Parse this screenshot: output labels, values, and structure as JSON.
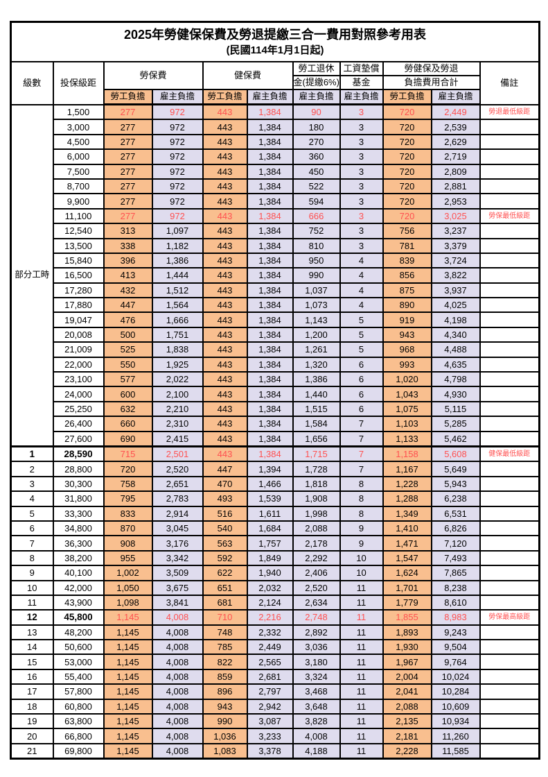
{
  "title": "2025年勞健保保費及勞退提繳三合一費用對照參考用表",
  "subtitle": "(民國114年1月1日起)",
  "colors": {
    "employee_col_bg": "#F9BF8F",
    "employer_col_bg": "#DFDCEE",
    "highlight_text": "#FF5050",
    "border": "#000000"
  },
  "header": {
    "col_level": "級數",
    "col_bracket": "投保級距",
    "group_labor": "勞保費",
    "group_health": "健保費",
    "group_pension_l1": "勞工退休",
    "group_pension_l2": "金(提繳6%)",
    "group_wage_l1": "工資墊償",
    "group_wage_l2": "基金",
    "group_total_l1": "勞健保及勞退",
    "group_total_l2": "負擔費用合計",
    "sub_employee": "勞工負擔",
    "sub_employer": "雇主負擔",
    "col_remark": "備註"
  },
  "part_time_label": "部分工時",
  "part_time_rowspan": 23,
  "rows": [
    {
      "level": "",
      "bracket": "1,500",
      "values": [
        "277",
        "972",
        "443",
        "1,384",
        "90",
        "3",
        "720",
        "2,449"
      ],
      "remark": "勞退最低級距",
      "highlight": true
    },
    {
      "level": "",
      "bracket": "3,000",
      "values": [
        "277",
        "972",
        "443",
        "1,384",
        "180",
        "3",
        "720",
        "2,539"
      ],
      "remark": ""
    },
    {
      "level": "",
      "bracket": "4,500",
      "values": [
        "277",
        "972",
        "443",
        "1,384",
        "270",
        "3",
        "720",
        "2,629"
      ],
      "remark": ""
    },
    {
      "level": "",
      "bracket": "6,000",
      "values": [
        "277",
        "972",
        "443",
        "1,384",
        "360",
        "3",
        "720",
        "2,719"
      ],
      "remark": ""
    },
    {
      "level": "",
      "bracket": "7,500",
      "values": [
        "277",
        "972",
        "443",
        "1,384",
        "450",
        "3",
        "720",
        "2,809"
      ],
      "remark": ""
    },
    {
      "level": "",
      "bracket": "8,700",
      "values": [
        "277",
        "972",
        "443",
        "1,384",
        "522",
        "3",
        "720",
        "2,881"
      ],
      "remark": ""
    },
    {
      "level": "",
      "bracket": "9,900",
      "values": [
        "277",
        "972",
        "443",
        "1,384",
        "594",
        "3",
        "720",
        "2,953"
      ],
      "remark": ""
    },
    {
      "level": "",
      "bracket": "11,100",
      "values": [
        "277",
        "972",
        "443",
        "1,384",
        "666",
        "3",
        "720",
        "3,025"
      ],
      "remark": "勞保最低級距",
      "highlight": true
    },
    {
      "level": "",
      "bracket": "12,540",
      "values": [
        "313",
        "1,097",
        "443",
        "1,384",
        "752",
        "3",
        "756",
        "3,237"
      ],
      "remark": ""
    },
    {
      "level": "",
      "bracket": "13,500",
      "values": [
        "338",
        "1,182",
        "443",
        "1,384",
        "810",
        "3",
        "781",
        "3,379"
      ],
      "remark": ""
    },
    {
      "level": "",
      "bracket": "15,840",
      "values": [
        "396",
        "1,386",
        "443",
        "1,384",
        "950",
        "4",
        "839",
        "3,724"
      ],
      "remark": ""
    },
    {
      "level": "",
      "bracket": "16,500",
      "values": [
        "413",
        "1,444",
        "443",
        "1,384",
        "990",
        "4",
        "856",
        "3,822"
      ],
      "remark": ""
    },
    {
      "level": "",
      "bracket": "17,280",
      "values": [
        "432",
        "1,512",
        "443",
        "1,384",
        "1,037",
        "4",
        "875",
        "3,937"
      ],
      "remark": ""
    },
    {
      "level": "",
      "bracket": "17,880",
      "values": [
        "447",
        "1,564",
        "443",
        "1,384",
        "1,073",
        "4",
        "890",
        "4,025"
      ],
      "remark": ""
    },
    {
      "level": "",
      "bracket": "19,047",
      "values": [
        "476",
        "1,666",
        "443",
        "1,384",
        "1,143",
        "5",
        "919",
        "4,198"
      ],
      "remark": ""
    },
    {
      "level": "",
      "bracket": "20,008",
      "values": [
        "500",
        "1,751",
        "443",
        "1,384",
        "1,200",
        "5",
        "943",
        "4,340"
      ],
      "remark": ""
    },
    {
      "level": "",
      "bracket": "21,009",
      "values": [
        "525",
        "1,838",
        "443",
        "1,384",
        "1,261",
        "5",
        "968",
        "4,488"
      ],
      "remark": ""
    },
    {
      "level": "",
      "bracket": "22,000",
      "values": [
        "550",
        "1,925",
        "443",
        "1,384",
        "1,320",
        "6",
        "993",
        "4,635"
      ],
      "remark": ""
    },
    {
      "level": "",
      "bracket": "23,100",
      "values": [
        "577",
        "2,022",
        "443",
        "1,384",
        "1,386",
        "6",
        "1,020",
        "4,798"
      ],
      "remark": ""
    },
    {
      "level": "",
      "bracket": "24,000",
      "values": [
        "600",
        "2,100",
        "443",
        "1,384",
        "1,440",
        "6",
        "1,043",
        "4,930"
      ],
      "remark": ""
    },
    {
      "level": "",
      "bracket": "25,250",
      "values": [
        "632",
        "2,210",
        "443",
        "1,384",
        "1,515",
        "6",
        "1,075",
        "5,115"
      ],
      "remark": ""
    },
    {
      "level": "",
      "bracket": "26,400",
      "values": [
        "660",
        "2,310",
        "443",
        "1,384",
        "1,584",
        "7",
        "1,103",
        "5,285"
      ],
      "remark": ""
    },
    {
      "level": "",
      "bracket": "27,600",
      "values": [
        "690",
        "2,415",
        "443",
        "1,384",
        "1,656",
        "7",
        "1,133",
        "5,462"
      ],
      "remark": ""
    },
    {
      "level": "1",
      "bracket": "28,590",
      "values": [
        "715",
        "2,501",
        "443",
        "1,384",
        "1,715",
        "7",
        "1,158",
        "5,608"
      ],
      "remark": "健保最低級距",
      "highlight": true,
      "thick_top": true,
      "bold": true
    },
    {
      "level": "2",
      "bracket": "28,800",
      "values": [
        "720",
        "2,520",
        "447",
        "1,394",
        "1,728",
        "7",
        "1,167",
        "5,649"
      ],
      "remark": ""
    },
    {
      "level": "3",
      "bracket": "30,300",
      "values": [
        "758",
        "2,651",
        "470",
        "1,466",
        "1,818",
        "8",
        "1,228",
        "5,943"
      ],
      "remark": ""
    },
    {
      "level": "4",
      "bracket": "31,800",
      "values": [
        "795",
        "2,783",
        "493",
        "1,539",
        "1,908",
        "8",
        "1,288",
        "6,238"
      ],
      "remark": ""
    },
    {
      "level": "5",
      "bracket": "33,300",
      "values": [
        "833",
        "2,914",
        "516",
        "1,611",
        "1,998",
        "8",
        "1,349",
        "6,531"
      ],
      "remark": ""
    },
    {
      "level": "6",
      "bracket": "34,800",
      "values": [
        "870",
        "3,045",
        "540",
        "1,684",
        "2,088",
        "9",
        "1,410",
        "6,826"
      ],
      "remark": ""
    },
    {
      "level": "7",
      "bracket": "36,300",
      "values": [
        "908",
        "3,176",
        "563",
        "1,757",
        "2,178",
        "9",
        "1,471",
        "7,120"
      ],
      "remark": ""
    },
    {
      "level": "8",
      "bracket": "38,200",
      "values": [
        "955",
        "3,342",
        "592",
        "1,849",
        "2,292",
        "10",
        "1,547",
        "7,493"
      ],
      "remark": ""
    },
    {
      "level": "9",
      "bracket": "40,100",
      "values": [
        "1,002",
        "3,509",
        "622",
        "1,940",
        "2,406",
        "10",
        "1,624",
        "7,865"
      ],
      "remark": ""
    },
    {
      "level": "10",
      "bracket": "42,000",
      "values": [
        "1,050",
        "3,675",
        "651",
        "2,032",
        "2,520",
        "11",
        "1,701",
        "8,238"
      ],
      "remark": ""
    },
    {
      "level": "11",
      "bracket": "43,900",
      "values": [
        "1,098",
        "3,841",
        "681",
        "2,124",
        "2,634",
        "11",
        "1,779",
        "8,610"
      ],
      "remark": ""
    },
    {
      "level": "12",
      "bracket": "45,800",
      "values": [
        "1,145",
        "4,008",
        "710",
        "2,216",
        "2,748",
        "11",
        "1,855",
        "8,983"
      ],
      "remark": "勞保最高級距",
      "highlight": true,
      "bold": true
    },
    {
      "level": "13",
      "bracket": "48,200",
      "values": [
        "1,145",
        "4,008",
        "748",
        "2,332",
        "2,892",
        "11",
        "1,893",
        "9,243"
      ],
      "remark": ""
    },
    {
      "level": "14",
      "bracket": "50,600",
      "values": [
        "1,145",
        "4,008",
        "785",
        "2,449",
        "3,036",
        "11",
        "1,930",
        "9,504"
      ],
      "remark": ""
    },
    {
      "level": "15",
      "bracket": "53,000",
      "values": [
        "1,145",
        "4,008",
        "822",
        "2,565",
        "3,180",
        "11",
        "1,967",
        "9,764"
      ],
      "remark": ""
    },
    {
      "level": "16",
      "bracket": "55,400",
      "values": [
        "1,145",
        "4,008",
        "859",
        "2,681",
        "3,324",
        "11",
        "2,004",
        "10,024"
      ],
      "remark": ""
    },
    {
      "level": "17",
      "bracket": "57,800",
      "values": [
        "1,145",
        "4,008",
        "896",
        "2,797",
        "3,468",
        "11",
        "2,041",
        "10,284"
      ],
      "remark": ""
    },
    {
      "level": "18",
      "bracket": "60,800",
      "values": [
        "1,145",
        "4,008",
        "943",
        "2,942",
        "3,648",
        "11",
        "2,088",
        "10,609"
      ],
      "remark": ""
    },
    {
      "level": "19",
      "bracket": "63,800",
      "values": [
        "1,145",
        "4,008",
        "990",
        "3,087",
        "3,828",
        "11",
        "2,135",
        "10,934"
      ],
      "remark": ""
    },
    {
      "level": "20",
      "bracket": "66,800",
      "values": [
        "1,145",
        "4,008",
        "1,036",
        "3,233",
        "4,008",
        "11",
        "2,181",
        "11,260"
      ],
      "remark": ""
    },
    {
      "level": "21",
      "bracket": "69,800",
      "values": [
        "1,145",
        "4,008",
        "1,083",
        "3,378",
        "4,188",
        "11",
        "2,228",
        "11,585"
      ],
      "remark": ""
    }
  ]
}
